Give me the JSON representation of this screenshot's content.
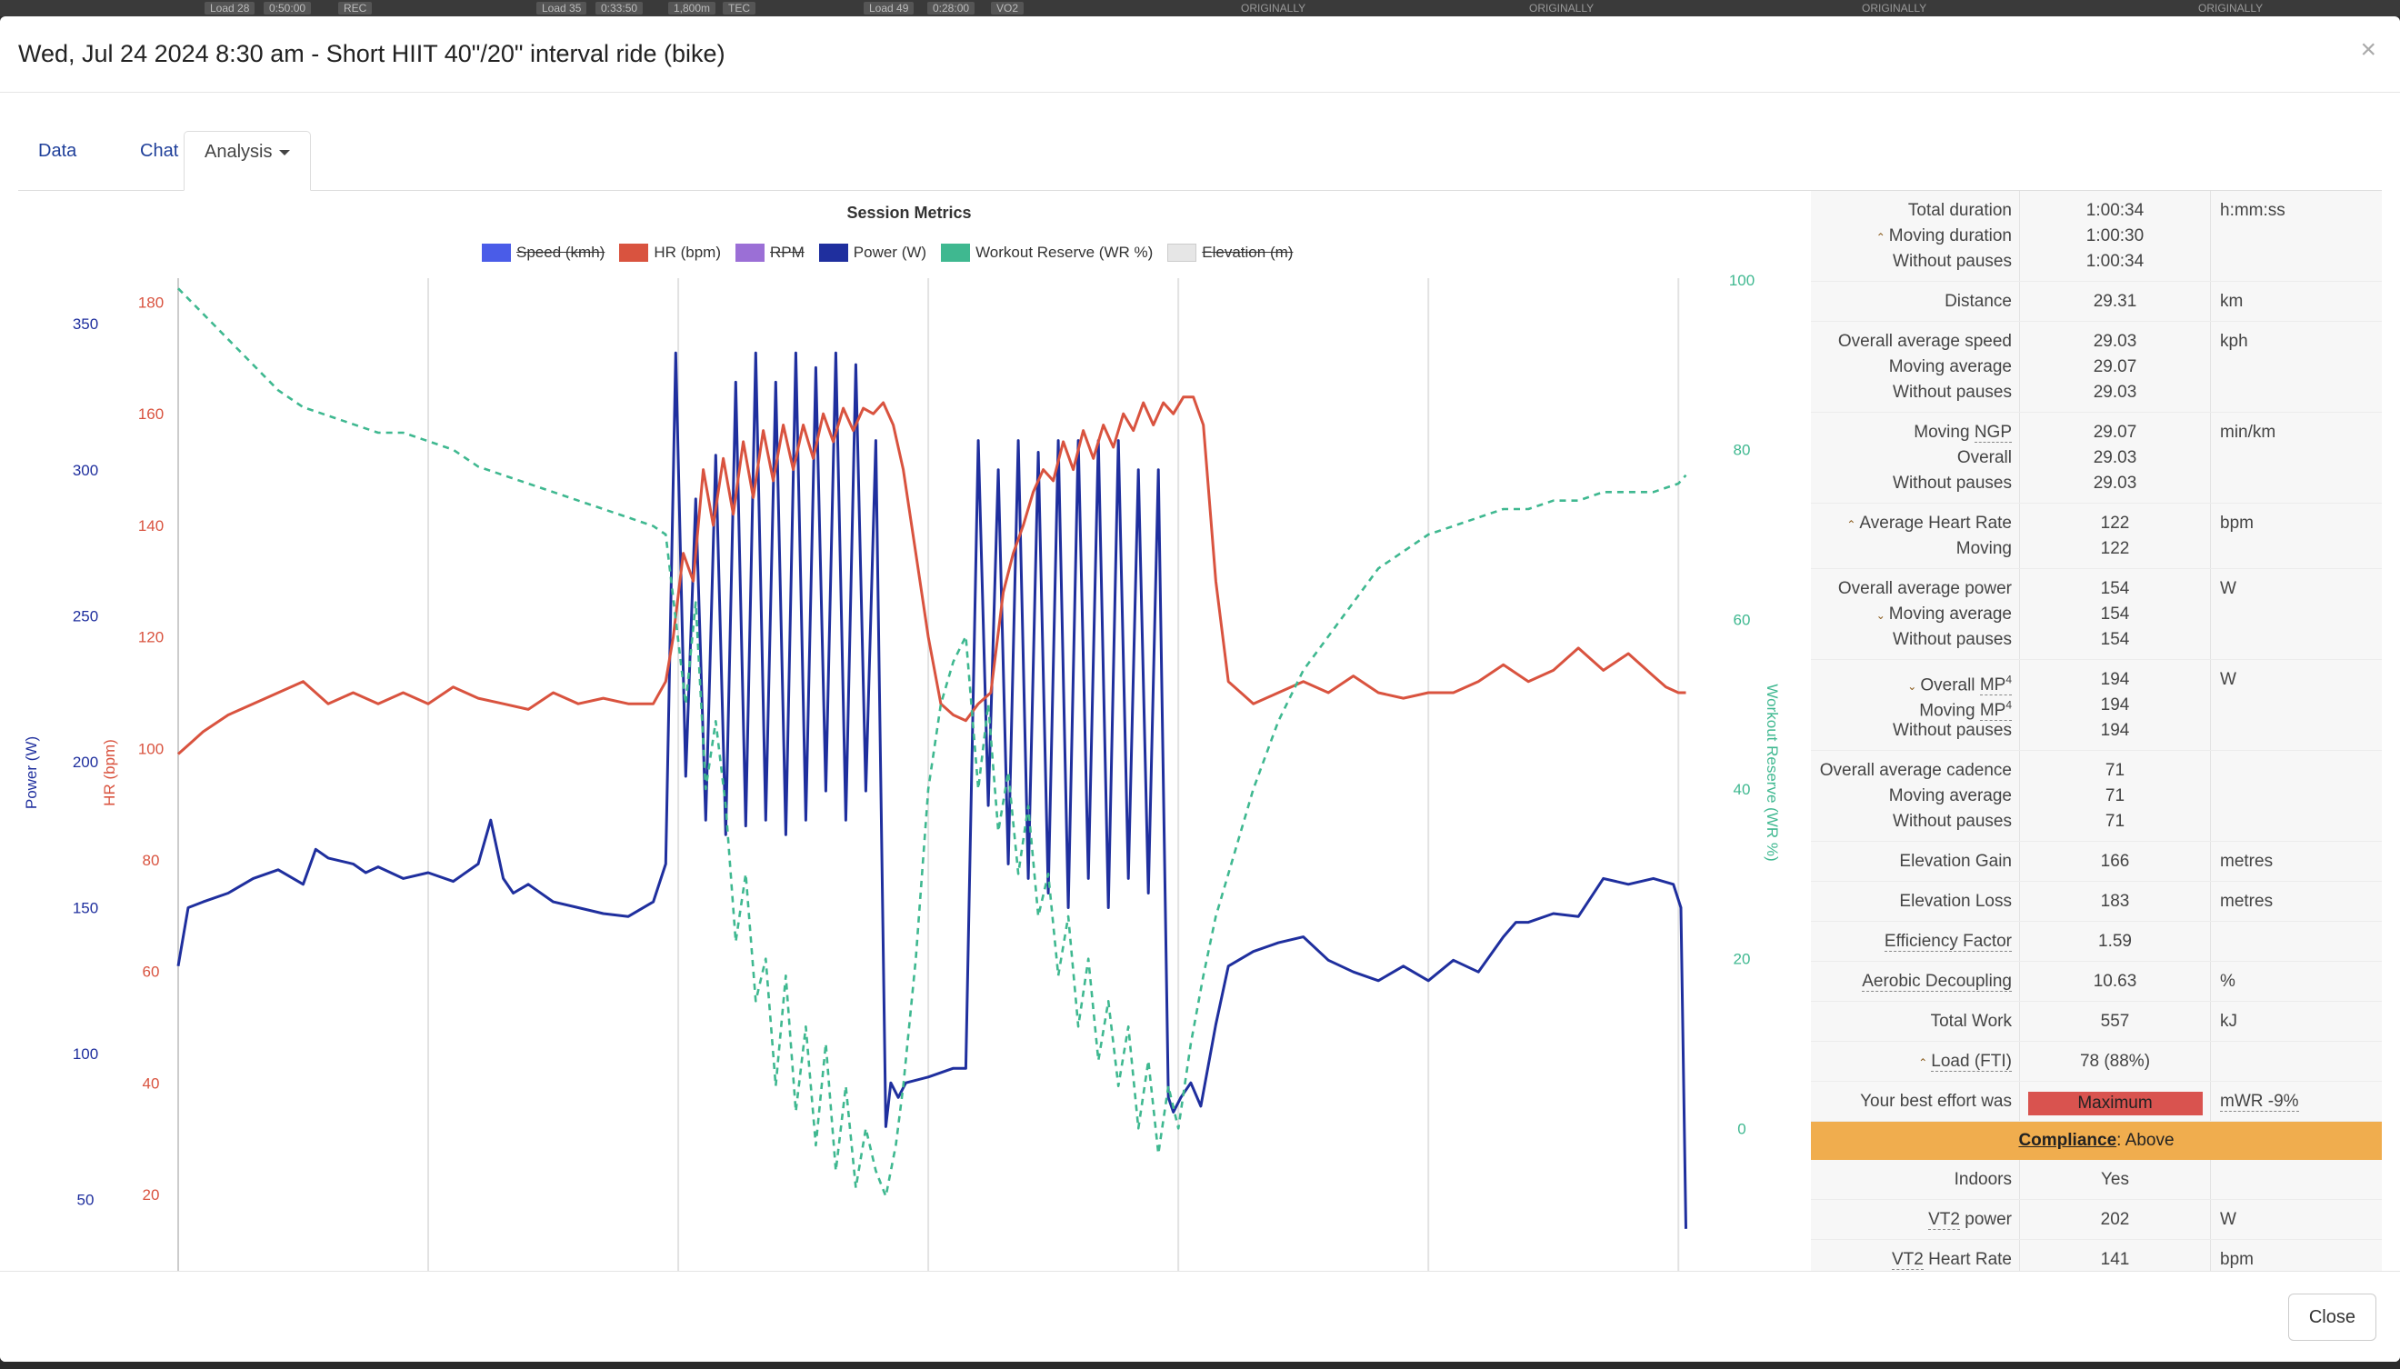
{
  "background_tags": [
    "Load 28",
    "0:50:00",
    "REC",
    "Load 35",
    "0:33:50",
    "1,800m",
    "TEC",
    "Load 49",
    "0:28:00",
    "VO2"
  ],
  "background_originally": [
    "ORIGINALLY",
    "ORIGINALLY",
    "ORIGINALLY",
    "ORIGINALLY"
  ],
  "modal": {
    "title": "Wed, Jul 24 2024 8:30 am - Short HIIT 40\"/20\" interval ride (bike)",
    "close_glyph": "×"
  },
  "tabs": [
    {
      "label": "Data"
    },
    {
      "label": "Chat"
    },
    {
      "label": "Analysis"
    }
  ],
  "chart_data": {
    "type": "line",
    "title": "Session Metrics",
    "legend": [
      {
        "name": "Speed (kmh)",
        "color": "#4a5ce8",
        "hidden": true
      },
      {
        "name": "HR (bpm)",
        "color": "#d9533f",
        "hidden": false
      },
      {
        "name": "RPM",
        "color": "#9b6fd6",
        "hidden": true
      },
      {
        "name": "Power (W)",
        "color": "#1f2f9e",
        "hidden": false
      },
      {
        "name": "Workout Reserve (WR %)",
        "color": "#3fb890",
        "hidden": false
      },
      {
        "name": "Elevation (m)",
        "color": "#e6e6e6",
        "hidden": true
      }
    ],
    "axes": {
      "power": {
        "label": "Power (W)",
        "color": "#1f2f9e",
        "ticks": [
          50,
          100,
          150,
          200,
          250,
          300,
          350
        ],
        "range": [
          25,
          365
        ]
      },
      "hr": {
        "label": "HR (bpm)",
        "color": "#d9533f",
        "ticks": [
          20,
          40,
          60,
          80,
          100,
          120,
          140,
          160,
          180
        ],
        "range": [
          6,
          184
        ]
      },
      "wr": {
        "label": "Workout Reserve (WR %)",
        "color": "#3fb890",
        "ticks": [
          0,
          20,
          40,
          60,
          80,
          100
        ],
        "range": [
          -17,
          100
        ]
      }
    },
    "x_range": [
      0,
      60.5
    ],
    "grid_x": [
      10,
      20,
      30,
      40,
      50,
      60
    ],
    "series": [
      {
        "name": "Power (W)",
        "axis": "power",
        "color": "#1f2f9e",
        "x": [
          0,
          0.4,
          1,
          2,
          3,
          4,
          5,
          5.5,
          6,
          7,
          7.5,
          8,
          9,
          10,
          11,
          12,
          12.5,
          13,
          13.4,
          14,
          15,
          16,
          17,
          18,
          19,
          19.5,
          19.9,
          20.3,
          20.7,
          21.1,
          21.5,
          21.9,
          22.3,
          22.7,
          23.1,
          23.5,
          23.9,
          24.3,
          24.7,
          25.1,
          25.5,
          25.9,
          26.3,
          26.7,
          27.1,
          27.5,
          27.9,
          28.3,
          28.5,
          28.8,
          29.1,
          30,
          31,
          31.5,
          32,
          32.4,
          32.8,
          33.2,
          33.6,
          34,
          34.4,
          34.8,
          35.2,
          35.6,
          36,
          36.4,
          36.8,
          37.2,
          37.6,
          38,
          38.4,
          38.8,
          39.2,
          39.6,
          39.8,
          40.1,
          40.5,
          40.9,
          41.5,
          42,
          43,
          44,
          45,
          46,
          47,
          48,
          49,
          50,
          51,
          52,
          53,
          53.5,
          54,
          55,
          56,
          57,
          58,
          59,
          59.8,
          60.1,
          60.3
        ],
        "y": [
          130,
          150,
          152,
          155,
          160,
          163,
          158,
          170,
          167,
          165,
          162,
          164,
          160,
          162,
          159,
          165,
          180,
          160,
          155,
          158,
          152,
          150,
          148,
          147,
          152,
          165,
          340,
          195,
          290,
          180,
          305,
          175,
          330,
          178,
          340,
          180,
          330,
          175,
          340,
          180,
          335,
          190,
          340,
          180,
          336,
          190,
          310,
          75,
          90,
          85,
          90,
          92,
          95,
          95,
          310,
          185,
          300,
          165,
          310,
          160,
          306,
          155,
          310,
          150,
          310,
          160,
          310,
          150,
          310,
          160,
          300,
          155,
          300,
          85,
          80,
          85,
          90,
          82,
          110,
          130,
          135,
          138,
          140,
          132,
          128,
          125,
          130,
          125,
          132,
          128,
          140,
          145,
          145,
          148,
          147,
          160,
          158,
          160,
          158,
          150,
          40
        ]
      },
      {
        "name": "HR (bpm)",
        "axis": "hr",
        "color": "#d9533f",
        "x": [
          0,
          0.5,
          1,
          2,
          3,
          4,
          5,
          5.5,
          6,
          7,
          8,
          9,
          10,
          11,
          12,
          13,
          14,
          15,
          16,
          17,
          18,
          19,
          19.5,
          19.8,
          20.2,
          20.6,
          21,
          21.4,
          21.8,
          22.2,
          22.6,
          23,
          23.4,
          23.8,
          24.2,
          24.6,
          25,
          25.4,
          25.8,
          26.2,
          26.6,
          27,
          27.4,
          27.8,
          28.2,
          28.6,
          29,
          29.5,
          30,
          30.5,
          31,
          31.5,
          32,
          32.5,
          33,
          33.4,
          33.8,
          34.2,
          34.6,
          35,
          35.4,
          35.8,
          36.2,
          36.6,
          37,
          37.4,
          37.8,
          38.2,
          38.6,
          39,
          39.4,
          39.8,
          40.2,
          40.6,
          41,
          41.5,
          42,
          43,
          44,
          45,
          46,
          47,
          48,
          49,
          50,
          51,
          52,
          53,
          54,
          55,
          56,
          57,
          58,
          59,
          59.5,
          60,
          60.3
        ],
        "y": [
          99,
          101,
          103,
          106,
          108,
          110,
          112,
          110,
          108,
          110,
          108,
          110,
          108,
          111,
          109,
          108,
          107,
          110,
          108,
          109,
          108,
          108,
          112,
          120,
          135,
          130,
          150,
          140,
          152,
          142,
          155,
          145,
          157,
          148,
          158,
          150,
          158,
          152,
          160,
          155,
          161,
          157,
          161,
          160,
          162,
          158,
          150,
          135,
          120,
          108,
          106,
          105,
          108,
          110,
          128,
          135,
          140,
          146,
          150,
          148,
          155,
          150,
          157,
          152,
          158,
          154,
          160,
          157,
          162,
          158,
          162,
          160,
          163,
          163,
          158,
          130,
          112,
          108,
          110,
          112,
          110,
          113,
          110,
          109,
          110,
          110,
          112,
          115,
          112,
          114,
          118,
          114,
          117,
          113,
          111,
          110,
          110
        ]
      },
      {
        "name": "Workout Reserve (WR %)",
        "axis": "wr",
        "color": "#3fb890",
        "x": [
          0,
          1,
          2,
          3,
          4,
          5,
          6,
          7,
          8,
          9,
          10,
          11,
          12,
          13,
          14,
          15,
          16,
          17,
          18,
          19,
          19.5,
          19.9,
          20.3,
          20.7,
          21.1,
          21.5,
          21.9,
          22.3,
          22.7,
          23.1,
          23.5,
          23.9,
          24.3,
          24.7,
          25.1,
          25.5,
          25.9,
          26.3,
          26.7,
          27.1,
          27.5,
          27.9,
          28.3,
          28.7,
          29,
          29.5,
          30,
          30.5,
          31,
          31.5,
          32,
          32.4,
          32.8,
          33.2,
          33.6,
          34,
          34.4,
          34.8,
          35.2,
          35.6,
          36,
          36.4,
          36.8,
          37.2,
          37.6,
          38,
          38.4,
          38.8,
          39.2,
          39.6,
          40,
          40.5,
          41,
          41.5,
          42,
          43,
          44,
          45,
          46,
          47,
          48,
          49,
          50,
          51,
          52,
          53,
          54,
          55,
          56,
          57,
          58,
          59,
          60,
          60.3
        ],
        "y": [
          99,
          96,
          93,
          90,
          87,
          85,
          84,
          83,
          82,
          82,
          81,
          80,
          78,
          77,
          76,
          75,
          74,
          73,
          72,
          71,
          70,
          60,
          50,
          62,
          40,
          48,
          38,
          22,
          30,
          15,
          20,
          5,
          18,
          2,
          12,
          -2,
          10,
          -5,
          5,
          -7,
          0,
          -5,
          -8,
          -2,
          5,
          20,
          40,
          50,
          55,
          58,
          40,
          50,
          35,
          42,
          30,
          38,
          25,
          30,
          18,
          25,
          12,
          20,
          8,
          15,
          5,
          12,
          0,
          8,
          -3,
          5,
          0,
          10,
          18,
          25,
          30,
          40,
          48,
          54,
          58,
          62,
          66,
          68,
          70,
          71,
          72,
          73,
          73,
          74,
          74,
          75,
          75,
          75,
          76,
          77
        ]
      }
    ]
  },
  "stats": [
    {
      "lines": [
        {
          "label": "Total duration",
          "value": "1:00:34",
          "unit": "h:mm:ss"
        },
        {
          "label": "Moving duration",
          "value": "1:00:30",
          "chevron": "up"
        },
        {
          "label": "Without pauses",
          "value": "1:00:34"
        }
      ]
    },
    {
      "lines": [
        {
          "label": "Distance",
          "value": "29.31",
          "unit": "km"
        }
      ]
    },
    {
      "lines": [
        {
          "label": "Overall average speed",
          "value": "29.03",
          "unit": "kph"
        },
        {
          "label": "Moving average",
          "value": "29.07"
        },
        {
          "label": "Without pauses",
          "value": "29.03"
        }
      ]
    },
    {
      "lines": [
        {
          "label": "Moving ",
          "label_term": "NGP",
          "value": "29.07",
          "unit": "min/km"
        },
        {
          "label": "Overall",
          "value": "29.03"
        },
        {
          "label": "Without pauses",
          "value": "29.03"
        }
      ]
    },
    {
      "lines": [
        {
          "label": "Average Heart Rate",
          "value": "122",
          "unit": "bpm",
          "chevron": "up"
        },
        {
          "label": "Moving",
          "value": "122"
        }
      ]
    },
    {
      "lines": [
        {
          "label": "Overall average power",
          "value": "154",
          "unit": "W"
        },
        {
          "label": "Moving average",
          "value": "154",
          "chevron": "down"
        },
        {
          "label": "Without pauses",
          "value": "154"
        }
      ]
    },
    {
      "lines": [
        {
          "label": "Overall ",
          "label_term": "MP",
          "sup": "4",
          "value": "194",
          "unit": "W",
          "chevron": "down"
        },
        {
          "label": "Moving ",
          "label_term": "MP",
          "sup": "4",
          "value": "194"
        },
        {
          "label": "Without pauses",
          "value": "194"
        }
      ]
    },
    {
      "lines": [
        {
          "label": "Overall average cadence",
          "value": "71"
        },
        {
          "label": "Moving average",
          "value": "71"
        },
        {
          "label": "Without pauses",
          "value": "71"
        }
      ]
    },
    {
      "lines": [
        {
          "label": "Elevation Gain",
          "value": "166",
          "unit": "metres"
        }
      ]
    },
    {
      "lines": [
        {
          "label": "Elevation Loss",
          "value": "183",
          "unit": "metres"
        }
      ]
    },
    {
      "lines": [
        {
          "label": "",
          "label_term": "Efficiency Factor",
          "value": "1.59"
        }
      ]
    },
    {
      "lines": [
        {
          "label": "",
          "label_term": "Aerobic Decoupling",
          "value": "10.63",
          "unit": "%"
        }
      ]
    },
    {
      "lines": [
        {
          "label": "Total Work",
          "value": "557",
          "unit": "kJ"
        }
      ]
    },
    {
      "lines": [
        {
          "label": "",
          "label_term": "Load (FTI)",
          "value": "78 (88%)",
          "chevron": "up"
        }
      ]
    },
    {
      "kind": "effort",
      "lines": [
        {
          "label": "Your best effort was",
          "value": "Maximum",
          "unit": "mWR -9%",
          "unit_dotted": true
        }
      ]
    },
    {
      "kind": "compliance",
      "strong": "Compliance",
      "text": ": Above"
    },
    {
      "lines": [
        {
          "label": "Indoors",
          "value": "Yes"
        }
      ]
    },
    {
      "lines": [
        {
          "label": "",
          "label_term": "VT2",
          "label_after": " power",
          "value": "202",
          "unit": "W"
        }
      ]
    },
    {
      "lines": [
        {
          "label": "",
          "label_term": "VT2",
          "label_after": " Heart Rate",
          "value": "141",
          "unit": "bpm"
        }
      ]
    }
  ],
  "footer": {
    "close_label": "Close"
  }
}
